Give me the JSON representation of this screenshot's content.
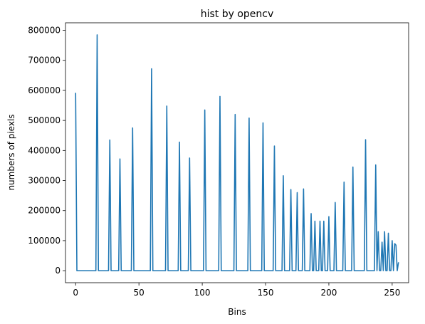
{
  "chart_data": {
    "type": "line",
    "title": "hist by opencv",
    "xlabel": "Bins",
    "ylabel": "numbers of piexls",
    "xlim": [
      -8,
      263
    ],
    "ylim": [
      -40000,
      825000
    ],
    "xticks": [
      0,
      50,
      100,
      150,
      200,
      250
    ],
    "yticks": [
      0,
      100000,
      200000,
      300000,
      400000,
      500000,
      600000,
      700000,
      800000
    ],
    "xtick_labels": [
      "0",
      "50",
      "100",
      "150",
      "200",
      "250"
    ],
    "ytick_labels": [
      "0",
      "100000",
      "200000",
      "300000",
      "400000",
      "500000",
      "600000",
      "700000",
      "800000"
    ],
    "grid": false,
    "legend": false,
    "series": [
      {
        "name": "hist",
        "color": "#1f77b4",
        "peaks": [
          [
            0,
            592000
          ],
          [
            17,
            785000
          ],
          [
            27,
            435000
          ],
          [
            35,
            372000
          ],
          [
            45,
            475000
          ],
          [
            60,
            672000
          ],
          [
            72,
            548000
          ],
          [
            82,
            428000
          ],
          [
            90,
            375000
          ],
          [
            102,
            535000
          ],
          [
            114,
            580000
          ],
          [
            126,
            520000
          ],
          [
            137,
            508000
          ],
          [
            148,
            492000
          ],
          [
            157,
            415000
          ],
          [
            164,
            316000
          ],
          [
            170,
            270000
          ],
          [
            175,
            260000
          ],
          [
            180,
            272000
          ],
          [
            186,
            190000
          ],
          [
            189,
            165000
          ],
          [
            193,
            165000
          ],
          [
            196,
            165000
          ],
          [
            200,
            180000
          ],
          [
            205,
            227000
          ],
          [
            212,
            295000
          ],
          [
            219,
            345000
          ],
          [
            229,
            436000
          ],
          [
            237,
            352000
          ],
          [
            239,
            130000
          ],
          [
            242,
            95000
          ],
          [
            244,
            130000
          ],
          [
            247,
            125000
          ],
          [
            250,
            100000
          ],
          [
            252,
            90000
          ],
          [
            253,
            85000
          ],
          [
            255,
            28000
          ]
        ]
      }
    ],
    "baseline": 0,
    "bins": 256
  }
}
